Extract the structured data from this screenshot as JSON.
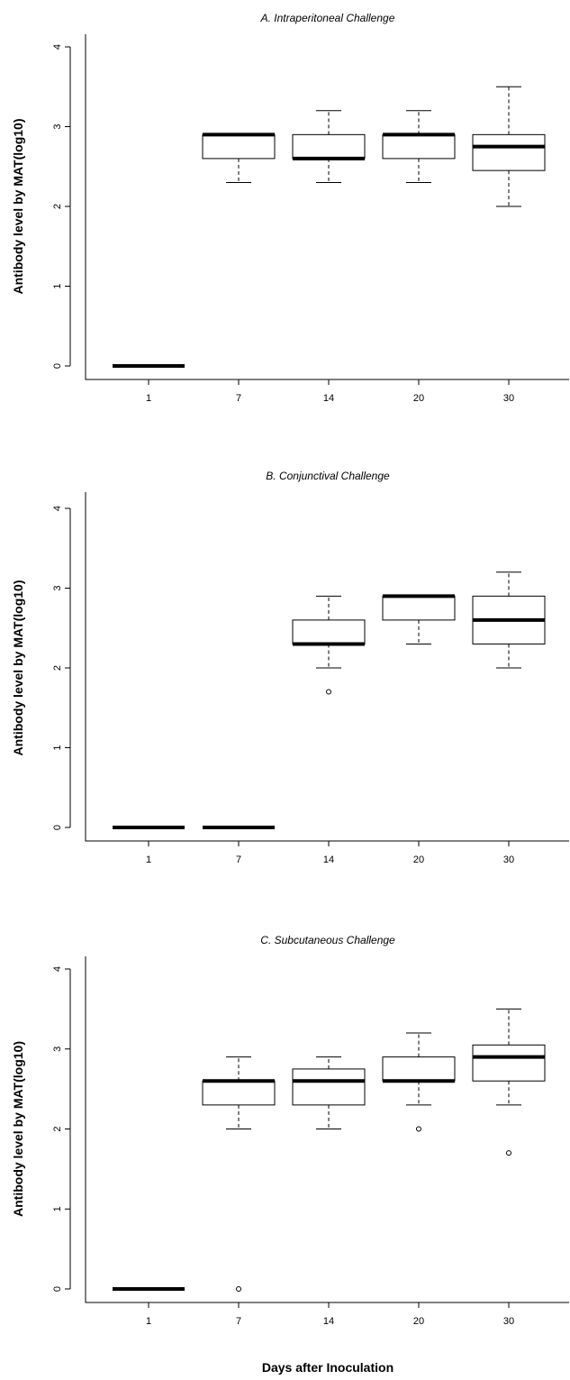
{
  "chart_data": [
    {
      "type": "boxplot",
      "title": "A. Intraperitoneal Challenge",
      "ylabel": "Antibody level by MAT(log10)",
      "ylim": [
        0,
        4
      ],
      "yticks": [
        0,
        1,
        2,
        3,
        4
      ],
      "categories": [
        "1",
        "7",
        "14",
        "20",
        "30"
      ],
      "boxes": [
        {
          "category": "1",
          "min": 0,
          "q1": 0,
          "median": 0,
          "q3": 0,
          "max": 0,
          "outliers": []
        },
        {
          "category": "7",
          "min": 2.3,
          "q1": 2.6,
          "median": 2.9,
          "q3": 2.9,
          "max": 2.9,
          "outliers": []
        },
        {
          "category": "14",
          "min": 2.3,
          "q1": 2.6,
          "median": 2.6,
          "q3": 2.9,
          "max": 3.2,
          "outliers": []
        },
        {
          "category": "20",
          "min": 2.3,
          "q1": 2.6,
          "median": 2.9,
          "q3": 2.9,
          "max": 3.2,
          "outliers": []
        },
        {
          "category": "30",
          "min": 2.0,
          "q1": 2.45,
          "median": 2.75,
          "q3": 2.9,
          "max": 3.5,
          "outliers": []
        }
      ]
    },
    {
      "type": "boxplot",
      "title": "B. Conjunctival Challenge",
      "ylabel": "Antibody level by MAT(log10)",
      "ylim": [
        0,
        4
      ],
      "yticks": [
        0,
        1,
        2,
        3,
        4
      ],
      "categories": [
        "1",
        "7",
        "14",
        "20",
        "30"
      ],
      "boxes": [
        {
          "category": "1",
          "min": 0,
          "q1": 0,
          "median": 0,
          "q3": 0,
          "max": 0,
          "outliers": []
        },
        {
          "category": "7",
          "min": 0,
          "q1": 0,
          "median": 0,
          "q3": 0,
          "max": 0,
          "outliers": []
        },
        {
          "category": "14",
          "min": 2.0,
          "q1": 2.3,
          "median": 2.3,
          "q3": 2.6,
          "max": 2.9,
          "outliers": [
            1.7
          ]
        },
        {
          "category": "20",
          "min": 2.3,
          "q1": 2.6,
          "median": 2.9,
          "q3": 2.9,
          "max": 2.9,
          "outliers": []
        },
        {
          "category": "30",
          "min": 2.0,
          "q1": 2.3,
          "median": 2.6,
          "q3": 2.9,
          "max": 3.2,
          "outliers": []
        }
      ]
    },
    {
      "type": "boxplot",
      "title": "C. Subcutaneous Challenge",
      "ylabel": "Antibody level by MAT(log10)",
      "xlabel": "Days after Inoculation",
      "ylim": [
        0,
        4
      ],
      "yticks": [
        0,
        1,
        2,
        3,
        4
      ],
      "categories": [
        "1",
        "7",
        "14",
        "20",
        "30"
      ],
      "boxes": [
        {
          "category": "1",
          "min": 0,
          "q1": 0,
          "median": 0,
          "q3": 0,
          "max": 0,
          "outliers": []
        },
        {
          "category": "7",
          "min": 2.0,
          "q1": 2.3,
          "median": 2.6,
          "q3": 2.6,
          "max": 2.9,
          "outliers": [
            0
          ]
        },
        {
          "category": "14",
          "min": 2.0,
          "q1": 2.3,
          "median": 2.6,
          "q3": 2.75,
          "max": 2.9,
          "outliers": []
        },
        {
          "category": "20",
          "min": 2.3,
          "q1": 2.6,
          "median": 2.6,
          "q3": 2.9,
          "max": 3.2,
          "outliers": [
            2.0
          ]
        },
        {
          "category": "30",
          "min": 2.3,
          "q1": 2.6,
          "median": 2.9,
          "q3": 3.05,
          "max": 3.5,
          "outliers": [
            1.7
          ]
        }
      ]
    }
  ]
}
